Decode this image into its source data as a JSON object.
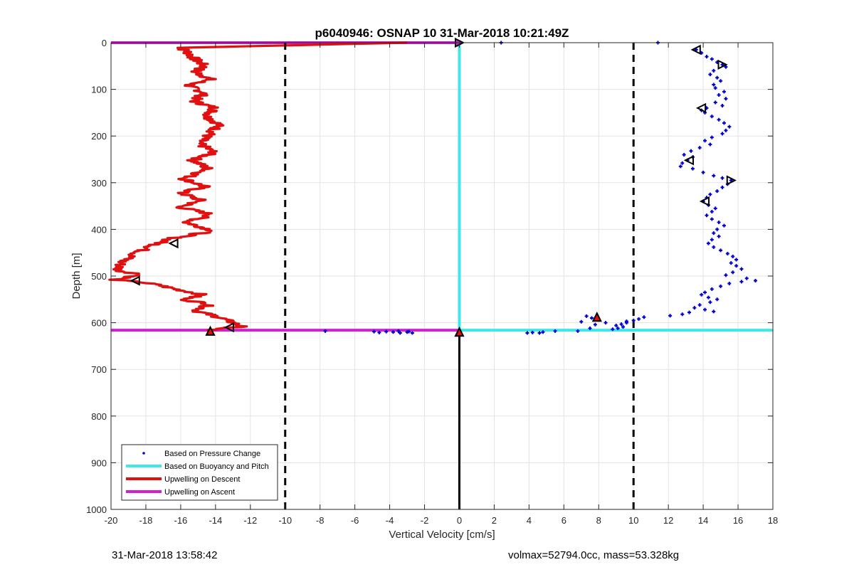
{
  "chart_data": {
    "type": "scatter",
    "title": "p6040946: OSNAP 10 31-Mar-2018 10:21:49Z",
    "xlabel": "Vertical Velocity [cm/s]",
    "ylabel": "Depth [m]",
    "xlim": [
      -20,
      18
    ],
    "ylim": [
      0,
      1000
    ],
    "y_reversed": true,
    "grid": true,
    "xticks": [
      -20,
      -18,
      -16,
      -14,
      -12,
      -10,
      -8,
      -6,
      -4,
      -2,
      0,
      2,
      4,
      6,
      8,
      10,
      12,
      14,
      16,
      18
    ],
    "yticks": [
      0,
      100,
      200,
      300,
      400,
      500,
      600,
      700,
      800,
      900,
      1000
    ],
    "legend_position": "bottom-left",
    "legend": [
      {
        "label": "Based on Pressure Change",
        "color": "#0000d0",
        "style": "point"
      },
      {
        "label": "Based on Buoyancy and Pitch",
        "color": "#3ee8ea",
        "style": "line"
      },
      {
        "label": "Upwelling on Descent",
        "color": "#e01010",
        "style": "line"
      },
      {
        "label": "Upwelling on Ascent",
        "color": "#d020d0",
        "style": "line"
      }
    ],
    "reference_lines": [
      {
        "axis": "x",
        "value": -10,
        "style": "dashed",
        "color": "#000000",
        "from": 0,
        "to": 1000
      },
      {
        "axis": "x",
        "value": 10,
        "style": "dashed",
        "color": "#000000",
        "from": 0,
        "to": 1000
      },
      {
        "axis": "x",
        "value": 0,
        "style": "solid",
        "color": "#000000",
        "from": 620,
        "to": 1000
      }
    ],
    "pressure_points": [
      [
        2.4,
        0
      ],
      [
        11.4,
        0
      ],
      [
        13.6,
        15
      ],
      [
        13.9,
        22
      ],
      [
        14.2,
        30
      ],
      [
        14.5,
        35
      ],
      [
        14.8,
        42
      ],
      [
        15.1,
        47
      ],
      [
        15.3,
        52
      ],
      [
        14.6,
        60
      ],
      [
        14.4,
        68
      ],
      [
        14.8,
        75
      ],
      [
        15.0,
        82
      ],
      [
        14.6,
        90
      ],
      [
        14.7,
        97
      ],
      [
        15.2,
        105
      ],
      [
        14.9,
        112
      ],
      [
        15.3,
        120
      ],
      [
        14.7,
        128
      ],
      [
        15.1,
        135
      ],
      [
        14.2,
        140
      ],
      [
        13.9,
        145
      ],
      [
        14.1,
        150
      ],
      [
        14.5,
        158
      ],
      [
        14.9,
        165
      ],
      [
        15.2,
        172
      ],
      [
        15.5,
        180
      ],
      [
        15.3,
        188
      ],
      [
        15.1,
        195
      ],
      [
        14.5,
        203
      ],
      [
        14.1,
        210
      ],
      [
        14.4,
        218
      ],
      [
        13.8,
        225
      ],
      [
        13.3,
        232
      ],
      [
        12.9,
        240
      ],
      [
        13.4,
        245
      ],
      [
        13.1,
        252
      ],
      [
        12.8,
        258
      ],
      [
        12.7,
        265
      ],
      [
        13.4,
        270
      ],
      [
        14.0,
        278
      ],
      [
        14.6,
        285
      ],
      [
        15.1,
        290
      ],
      [
        15.6,
        295
      ],
      [
        15.4,
        303
      ],
      [
        15.1,
        310
      ],
      [
        14.8,
        318
      ],
      [
        14.4,
        325
      ],
      [
        14.2,
        332
      ],
      [
        14.0,
        340
      ],
      [
        14.3,
        348
      ],
      [
        14.7,
        355
      ],
      [
        14.5,
        362
      ],
      [
        14.2,
        370
      ],
      [
        14.5,
        378
      ],
      [
        14.9,
        385
      ],
      [
        15.2,
        392
      ],
      [
        14.8,
        400
      ],
      [
        14.6,
        408
      ],
      [
        14.9,
        415
      ],
      [
        14.5,
        422
      ],
      [
        14.3,
        430
      ],
      [
        14.6,
        438
      ],
      [
        15.0,
        445
      ],
      [
        15.4,
        452
      ],
      [
        15.7,
        458
      ],
      [
        15.9,
        465
      ],
      [
        15.6,
        472
      ],
      [
        15.9,
        478
      ],
      [
        16.2,
        485
      ],
      [
        15.7,
        492
      ],
      [
        15.3,
        498
      ],
      [
        16.5,
        505
      ],
      [
        17.0,
        510
      ],
      [
        16.2,
        512
      ],
      [
        15.5,
        516
      ],
      [
        15.0,
        522
      ],
      [
        14.5,
        528
      ],
      [
        14.1,
        535
      ],
      [
        13.9,
        540
      ],
      [
        14.3,
        546
      ],
      [
        14.8,
        550
      ],
      [
        14.4,
        556
      ],
      [
        13.8,
        562
      ],
      [
        13.5,
        568
      ],
      [
        14.1,
        572
      ],
      [
        14.6,
        576
      ],
      [
        13.2,
        578
      ],
      [
        12.8,
        582
      ],
      [
        12.1,
        585
      ],
      [
        10.6,
        588
      ],
      [
        10.3,
        592
      ],
      [
        10.0,
        595
      ],
      [
        9.6,
        600
      ],
      [
        9.3,
        603
      ],
      [
        9.0,
        606
      ],
      [
        9.4,
        609
      ],
      [
        9.1,
        612
      ],
      [
        8.8,
        614
      ],
      [
        9.6,
        597
      ],
      [
        7.3,
        586
      ],
      [
        7.6,
        590
      ],
      [
        7.0,
        598
      ],
      [
        7.8,
        604
      ],
      [
        8.4,
        600
      ],
      [
        7.5,
        612
      ],
      [
        6.8,
        618
      ],
      [
        5.5,
        618
      ],
      [
        4.8,
        620
      ],
      [
        4.2,
        621
      ],
      [
        4.6,
        622
      ],
      [
        3.9,
        622
      ],
      [
        -2.7,
        622
      ],
      [
        -3.0,
        620
      ],
      [
        -3.4,
        622
      ],
      [
        -3.8,
        620
      ],
      [
        -4.2,
        619
      ],
      [
        -4.6,
        621
      ],
      [
        -3.5,
        618
      ],
      [
        -2.9,
        619
      ],
      [
        -7.7,
        618
      ],
      [
        -4.9,
        619
      ]
    ],
    "buoyancy_pitch": [
      [
        0.0,
        0
      ],
      [
        0.0,
        616
      ],
      [
        18,
        616
      ]
    ],
    "upwelling_descent_anchors": [
      [
        -3,
        0
      ],
      [
        -12.5,
        8
      ],
      [
        -16.0,
        11
      ],
      [
        -15.6,
        20
      ],
      [
        -15.2,
        35
      ],
      [
        -14.6,
        50
      ],
      [
        -15.2,
        62
      ],
      [
        -14.3,
        78
      ],
      [
        -15.6,
        92
      ],
      [
        -14.6,
        108
      ],
      [
        -15.3,
        125
      ],
      [
        -14.0,
        140
      ],
      [
        -14.5,
        158
      ],
      [
        -13.8,
        175
      ],
      [
        -14.3,
        195
      ],
      [
        -15.0,
        215
      ],
      [
        -14.1,
        235
      ],
      [
        -15.3,
        252
      ],
      [
        -14.4,
        270
      ],
      [
        -15.8,
        292
      ],
      [
        -14.6,
        308
      ],
      [
        -16.0,
        322
      ],
      [
        -14.8,
        338
      ],
      [
        -16.1,
        352
      ],
      [
        -14.2,
        368
      ],
      [
        -15.7,
        385
      ],
      [
        -14.1,
        403
      ],
      [
        -16.6,
        420
      ],
      [
        -17.8,
        438
      ],
      [
        -18.6,
        452
      ],
      [
        -19.4,
        470
      ],
      [
        -19.6,
        488
      ],
      [
        -18.2,
        497
      ],
      [
        -19.8,
        508
      ],
      [
        -18.1,
        514
      ],
      [
        -17.2,
        520
      ],
      [
        -16.3,
        528
      ],
      [
        -14.7,
        540
      ],
      [
        -15.9,
        550
      ],
      [
        -14.3,
        560
      ],
      [
        -15.1,
        575
      ],
      [
        -13.8,
        588
      ],
      [
        -13.0,
        600
      ],
      [
        -12.5,
        608
      ],
      [
        -13.5,
        612
      ],
      [
        -14.5,
        616
      ]
    ],
    "upwelling_ascent": [
      [
        -20,
        0
      ],
      [
        0,
        0
      ],
      [
        -20,
        616
      ],
      [
        0,
        616
      ]
    ],
    "descent_triangles": [
      [
        -16.4,
        430,
        "left"
      ],
      [
        -18.6,
        510,
        "left"
      ],
      [
        -13.2,
        610,
        "left"
      ],
      [
        -14.3,
        618,
        "up"
      ],
      [
        0,
        0,
        "right"
      ],
      [
        0,
        620,
        "up"
      ]
    ],
    "ascent_triangles": [
      [
        7.9,
        588,
        "up"
      ],
      [
        13.6,
        15,
        "left"
      ],
      [
        15.1,
        47,
        "right"
      ],
      [
        13.9,
        140,
        "left"
      ],
      [
        13.2,
        252,
        "left"
      ],
      [
        15.6,
        295,
        "right"
      ],
      [
        14.1,
        340,
        "left"
      ]
    ]
  },
  "footer": {
    "left": "31-Mar-2018 13:58:42",
    "right": "volmax=52794.0cc, mass=53.328kg"
  }
}
